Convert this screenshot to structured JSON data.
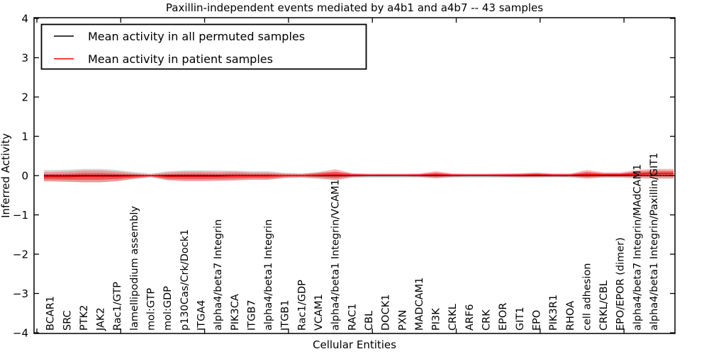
{
  "figure": {
    "title": "Paxillin-independent events mediated by a4b1 and a4b7 -- 43 samples",
    "xlabel": "Cellular Entities",
    "ylabel": "Inferred Activity"
  },
  "legend": {
    "items": [
      {
        "label": "Mean activity in all permuted samples",
        "color": "#000000"
      },
      {
        "label": "Mean activity in patient samples",
        "color": "#ff0000"
      }
    ]
  },
  "chart_data": {
    "type": "line",
    "title": "Paxillin-independent events mediated by a4b1 and a4b7 -- 43 samples",
    "xlabel": "Cellular Entities",
    "ylabel": "Inferred Activity",
    "ylim": [
      -4,
      4
    ],
    "yticks": [
      4,
      3,
      2,
      1,
      0,
      -1,
      -2,
      -3,
      -4
    ],
    "ytick_labels": [
      "4",
      "3",
      "2",
      "1",
      "0",
      "−1",
      "−2",
      "−3",
      "−4"
    ],
    "grid": false,
    "legend_position": "upper left",
    "zero_line": {
      "style": "dotted",
      "color": "#000000",
      "value": 0
    },
    "categories": [
      "BCAR1",
      "SRC",
      "PTK2",
      "JAK2",
      "Rac1/GTP",
      "lamellipodium assembly",
      "mol:GTP",
      "mol:GDP",
      "p130Cas/Crk/Dock1",
      "ITGA4",
      "alpha4/beta7 Integrin",
      "PIK3CA",
      "ITGB7",
      "alpha4/beta1 Integrin",
      "ITGB1",
      "Rac1/GDP",
      "VCAM1",
      "alpha4/beta1 Integrin/VCAM1",
      "RAC1",
      "CBL",
      "DOCK1",
      "PXN",
      "MADCAM1",
      "PI3K",
      "CRKL",
      "ARF6",
      "CRK",
      "EPOR",
      "GIT1",
      "EPO",
      "PIK3R1",
      "RHOA",
      "cell adhesion",
      "CRKL/CBL",
      "EPO/EPOR (dimer)",
      "alpha4/beta7 Integrin/MAdCAM1",
      "alpha4/beta1 Integrin/Paxillin/GIT1"
    ],
    "series": [
      {
        "name": "Mean activity in all permuted samples",
        "color": "#000000",
        "band_color": "#888888",
        "band_opacity": 0.35,
        "values": [
          0,
          0,
          0,
          0,
          0,
          0,
          0,
          0,
          0,
          0,
          0,
          0,
          0,
          0,
          0,
          0,
          0,
          0,
          0,
          0,
          0,
          0,
          0,
          0,
          0,
          0,
          0,
          0,
          0,
          0,
          0,
          0,
          0,
          0,
          0,
          0,
          0
        ],
        "band_halfwidth": [
          0.14,
          0.15,
          0.17,
          0.17,
          0.14,
          0.09,
          0.05,
          0.11,
          0.13,
          0.13,
          0.13,
          0.12,
          0.11,
          0.11,
          0.07,
          0.06,
          0.08,
          0.09,
          0.06,
          0.05,
          0.05,
          0.05,
          0.05,
          0.06,
          0.05,
          0.05,
          0.05,
          0.05,
          0.05,
          0.05,
          0.05,
          0.05,
          0.06,
          0.06,
          0.06,
          0.07,
          0.08
        ]
      },
      {
        "name": "Mean activity in patient samples",
        "color": "#ff0000",
        "band_color": "#ff5050",
        "band_opacity": 0.45,
        "inner_band_color": "#dd2020",
        "inner_band_opacity": 0.55,
        "values": [
          -0.03,
          -0.03,
          -0.02,
          -0.02,
          -0.02,
          -0.01,
          0,
          -0.02,
          -0.02,
          -0.02,
          -0.02,
          -0.01,
          -0.01,
          -0.01,
          0,
          0,
          0.01,
          0.02,
          0.01,
          0.01,
          0.01,
          0.01,
          0.01,
          0.02,
          0.01,
          0.01,
          0.01,
          0.01,
          0.01,
          0.02,
          0.01,
          0.01,
          0.03,
          0.02,
          0.02,
          0.04,
          0.05
        ],
        "band_halfwidth": [
          0.12,
          0.13,
          0.15,
          0.15,
          0.12,
          0.07,
          0.03,
          0.1,
          0.12,
          0.12,
          0.11,
          0.11,
          0.09,
          0.09,
          0.05,
          0.04,
          0.08,
          0.14,
          0.05,
          0.03,
          0.03,
          0.03,
          0.04,
          0.09,
          0.04,
          0.03,
          0.03,
          0.04,
          0.05,
          0.06,
          0.04,
          0.04,
          0.11,
          0.06,
          0.06,
          0.1,
          0.12
        ]
      }
    ]
  }
}
